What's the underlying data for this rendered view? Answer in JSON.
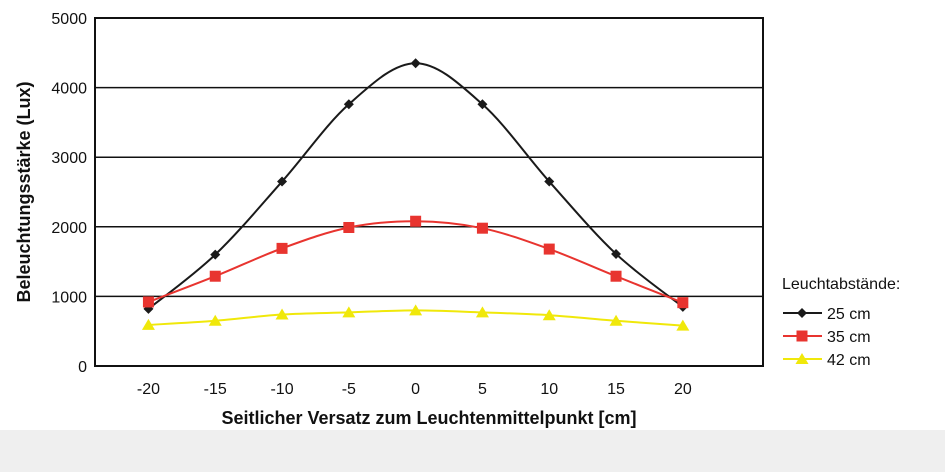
{
  "chart_data": {
    "type": "line",
    "title": "",
    "xlabel": "Seitlicher Versatz zum Leuchtenmittelpunkt [cm]",
    "ylabel": "Beleuchtungsstärke (Lux)",
    "x": [
      -20,
      -15,
      -10,
      -5,
      0,
      5,
      10,
      15,
      20
    ],
    "xticks": [
      "-20",
      "-15",
      "-10",
      "-5",
      "0",
      "5",
      "10",
      "15",
      "20"
    ],
    "yticks": [
      "0",
      "1000",
      "2000",
      "3000",
      "4000",
      "5000"
    ],
    "xlim": [
      -24,
      26
    ],
    "ylim": [
      0,
      5000
    ],
    "grid": "horizontal",
    "legend_title": "Leuchtabstände:",
    "legend_position": "right",
    "series": [
      {
        "name": "25 cm",
        "color": "#1a1a1a",
        "marker": "diamond",
        "values": [
          820,
          1600,
          2650,
          3760,
          4350,
          3760,
          2650,
          1610,
          850
        ]
      },
      {
        "name": "35 cm",
        "color": "#e8342f",
        "marker": "square",
        "values": [
          920,
          1290,
          1690,
          1990,
          2080,
          1980,
          1680,
          1290,
          910
        ]
      },
      {
        "name": "42 cm",
        "color": "#f0e80a",
        "marker": "triangle",
        "values": [
          590,
          650,
          740,
          770,
          800,
          770,
          730,
          650,
          580
        ]
      }
    ]
  }
}
